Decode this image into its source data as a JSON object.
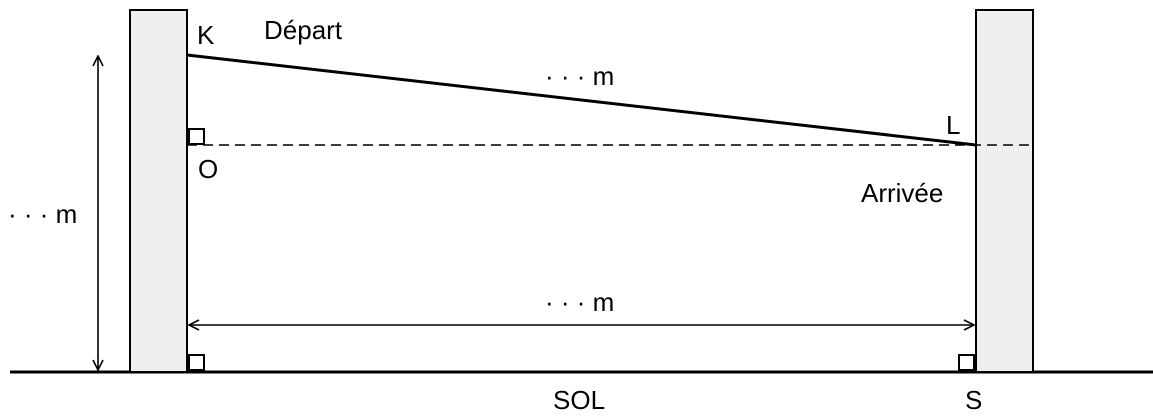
{
  "labels": {
    "point_k": "K",
    "depart": "Départ",
    "zipline_length": "· · · m",
    "point_l": "L",
    "point_o": "O",
    "arrivee": "Arrivée",
    "height_left": "· · · m",
    "distance_between": "· · · m",
    "ground": "SOL",
    "point_s": "S"
  },
  "colors": {
    "stroke": "#000000",
    "pillar_fill": "#efefef"
  }
}
